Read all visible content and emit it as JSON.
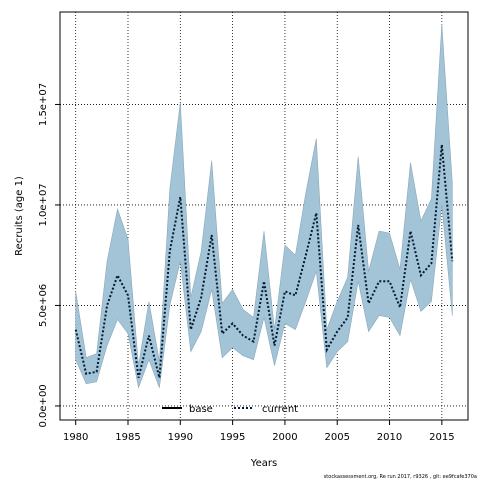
{
  "chart_data": {
    "type": "line",
    "title": "",
    "xlabel": "Years",
    "ylabel": "Recruits (age 1)",
    "xlim": [
      1978.5,
      2017.5
    ],
    "ylim": [
      -700000,
      19600000
    ],
    "x_ticks": [
      1980,
      1985,
      1990,
      1995,
      2000,
      2005,
      2010,
      2015
    ],
    "x_tick_labels": [
      "1980",
      "1985",
      "1990",
      "1995",
      "2000",
      "2005",
      "2010",
      "2015"
    ],
    "y_ticks": [
      0,
      5000000,
      10000000,
      15000000
    ],
    "y_tick_labels": [
      "0.0e+00",
      "5.0e+06",
      "1.0e+07",
      "1.5e+07"
    ],
    "grid": true,
    "legend_position": "bottom-left",
    "x": [
      1980,
      1981,
      1982,
      1983,
      1984,
      1985,
      1986,
      1987,
      1988,
      1989,
      1990,
      1991,
      1992,
      1993,
      1994,
      1995,
      1996,
      1997,
      1998,
      1999,
      2000,
      2001,
      2002,
      2003,
      2004,
      2005,
      2006,
      2007,
      2008,
      2009,
      2010,
      2011,
      2012,
      2013,
      2014,
      2015,
      2016
    ],
    "band_upper": [
      5700000,
      2400000,
      2600000,
      7200000,
      9800000,
      8300000,
      2000000,
      5200000,
      2200000,
      10800000,
      15100000,
      5400000,
      7700000,
      12200000,
      5100000,
      5800000,
      4800000,
      4400000,
      8700000,
      3800000,
      8000000,
      7500000,
      10600000,
      13300000,
      3800000,
      5200000,
      6400000,
      12400000,
      6700000,
      8700000,
      8600000,
      6800000,
      12100000,
      9200000,
      10300000,
      19000000,
      11100000
    ],
    "band_lower": [
      2300000,
      1100000,
      1200000,
      3000000,
      4300000,
      3600000,
      900000,
      2300000,
      900000,
      5000000,
      7200000,
      2700000,
      3700000,
      5800000,
      2400000,
      2900000,
      2500000,
      2300000,
      4400000,
      2000000,
      4100000,
      3800000,
      5200000,
      6700000,
      1900000,
      2700000,
      3200000,
      6200000,
      3700000,
      4500000,
      4400000,
      3500000,
      6300000,
      4700000,
      5200000,
      10000000,
      4500000
    ],
    "series": [
      {
        "name": "current",
        "values": [
          3800000,
          1600000,
          1700000,
          5000000,
          6500000,
          5500000,
          1400000,
          3500000,
          1400000,
          7700000,
          10400000,
          3800000,
          5400000,
          8500000,
          3600000,
          4100000,
          3500000,
          3200000,
          6200000,
          3000000,
          5700000,
          5500000,
          7500000,
          9600000,
          2800000,
          3700000,
          4400000,
          9000000,
          5100000,
          6200000,
          6200000,
          4900000,
          8700000,
          6500000,
          7100000,
          13000000,
          7200000
        ]
      }
    ],
    "legend": [
      {
        "label": "base",
        "style": "solid"
      },
      {
        "label": "current",
        "style": "dotted"
      }
    ],
    "colors": {
      "band": "#a3c3d6",
      "band_edge": "#8aa9bb",
      "line": "#001a33"
    }
  },
  "footnote": "stockassessment.org, Re run 2017, r9326 , git: ee9fcafe370a"
}
